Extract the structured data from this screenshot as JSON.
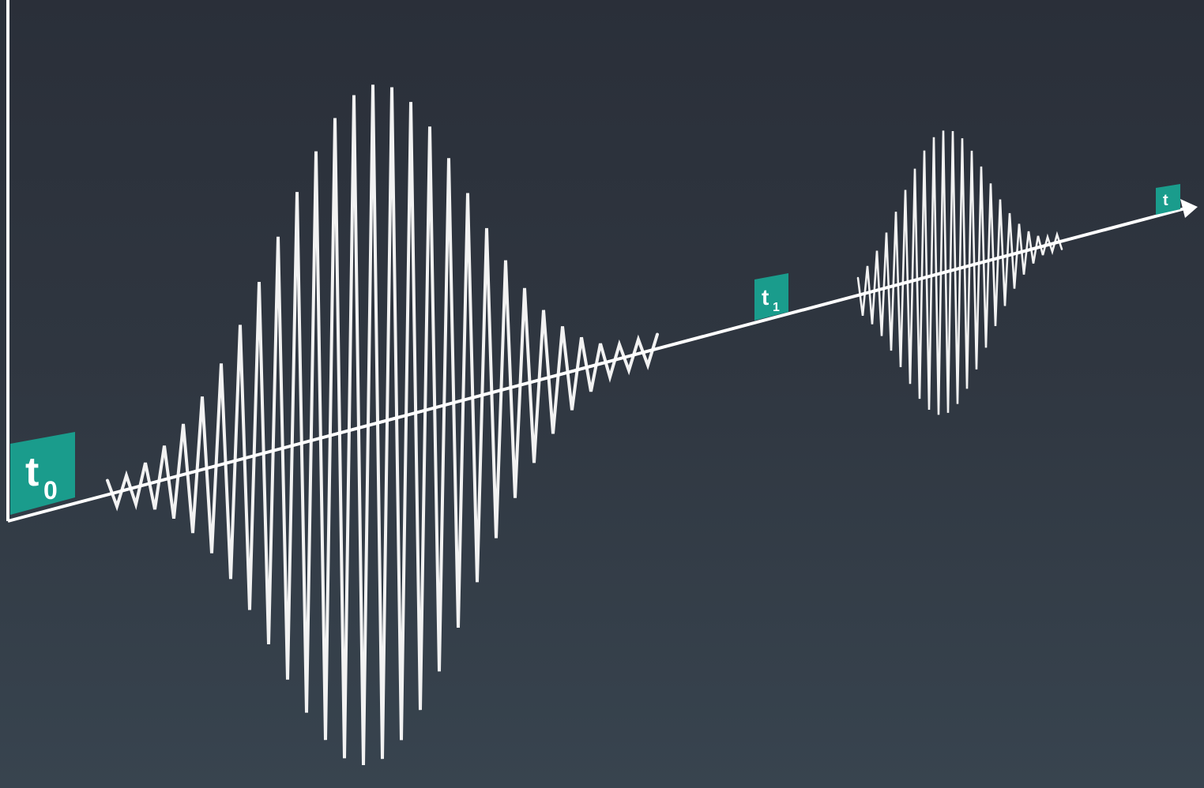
{
  "diagram": {
    "labels": {
      "t0": {
        "letter": "t",
        "subscript": "0"
      },
      "t1": {
        "letter": "t",
        "subscript": "1"
      },
      "axis_end": {
        "letter": "t",
        "subscript": ""
      }
    },
    "colors": {
      "background_top": "#2a2f39",
      "background_bottom": "#38444f",
      "label_fill": "#1a9c8c",
      "line": "#ffffff"
    }
  }
}
